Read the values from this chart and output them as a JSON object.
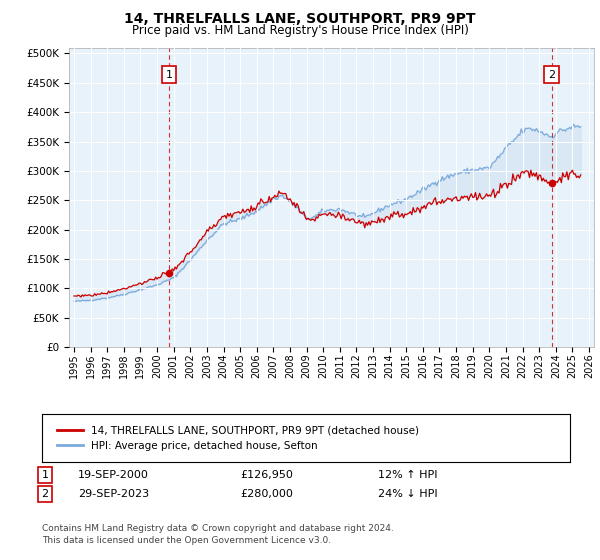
{
  "title": "14, THRELFALLS LANE, SOUTHPORT, PR9 9PT",
  "subtitle": "Price paid vs. HM Land Registry's House Price Index (HPI)",
  "ylabel_ticks": [
    "£0",
    "£50K",
    "£100K",
    "£150K",
    "£200K",
    "£250K",
    "£300K",
    "£350K",
    "£400K",
    "£450K",
    "£500K"
  ],
  "ytick_values": [
    0,
    50000,
    100000,
    150000,
    200000,
    250000,
    300000,
    350000,
    400000,
    450000,
    500000
  ],
  "ylim": [
    0,
    510000
  ],
  "x_start_year": 1995,
  "x_end_year": 2026,
  "xtick_years": [
    1995,
    1996,
    1997,
    1998,
    1999,
    2000,
    2001,
    2002,
    2003,
    2004,
    2005,
    2006,
    2007,
    2008,
    2009,
    2010,
    2011,
    2012,
    2013,
    2014,
    2015,
    2016,
    2017,
    2018,
    2019,
    2020,
    2021,
    2022,
    2023,
    2024,
    2025,
    2026
  ],
  "purchase1_x": 2000.72,
  "purchase1_price": 126950,
  "purchase2_x": 2023.75,
  "purchase2_price": 280000,
  "annotation1_date": "19-SEP-2000",
  "annotation1_price": "£126,950",
  "annotation1_hpi": "12% ↑ HPI",
  "annotation2_date": "29-SEP-2023",
  "annotation2_price": "£280,000",
  "annotation2_hpi": "24% ↓ HPI",
  "legend_line1": "14, THRELFALLS LANE, SOUTHPORT, PR9 9PT (detached house)",
  "legend_line2": "HPI: Average price, detached house, Sefton",
  "footnote1": "Contains HM Land Registry data © Crown copyright and database right 2024.",
  "footnote2": "This data is licensed under the Open Government Licence v3.0.",
  "line_color_red": "#cc0000",
  "line_color_blue": "#7aaadd",
  "fill_color": "#cce0f0",
  "plot_bg_color": "#e8f2fa",
  "grid_color": "#ffffff",
  "box_color_red": "#cc0000"
}
